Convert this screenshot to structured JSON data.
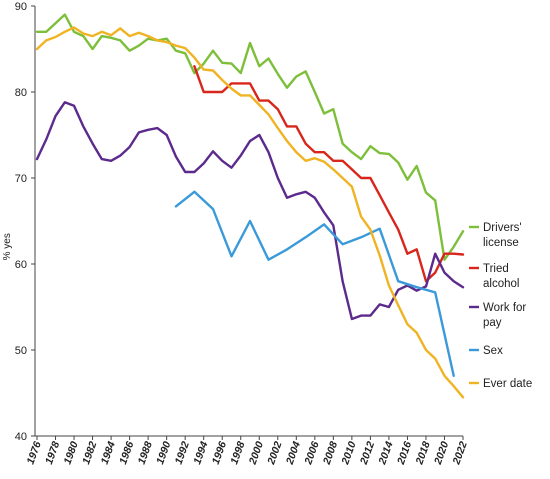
{
  "chart_data": {
    "type": "line",
    "title": "",
    "xlabel": "",
    "ylabel": "% yes",
    "ylim": [
      40,
      90
    ],
    "yticks": [
      40,
      50,
      60,
      70,
      80,
      90
    ],
    "xlim": [
      1976,
      2022
    ],
    "xticks": [
      1976,
      1978,
      1980,
      1982,
      1984,
      1986,
      1988,
      1990,
      1992,
      1994,
      1996,
      1998,
      2000,
      2002,
      2004,
      2006,
      2008,
      2010,
      2012,
      2014,
      2016,
      2018,
      2020,
      2022
    ],
    "grid": false,
    "legend": "right",
    "series": [
      {
        "name": "Drivers' license",
        "color": "#7dbf3b",
        "x": [
          1976,
          1977,
          1978,
          1979,
          1980,
          1981,
          1982,
          1983,
          1984,
          1985,
          1986,
          1987,
          1988,
          1989,
          1990,
          1991,
          1992,
          1993,
          1994,
          1995,
          1996,
          1997,
          1998,
          1999,
          2000,
          2001,
          2002,
          2003,
          2004,
          2005,
          2006,
          2007,
          2008,
          2009,
          2010,
          2011,
          2012,
          2013,
          2014,
          2015,
          2016,
          2017,
          2018,
          2019,
          2020,
          2021,
          2022
        ],
        "values": [
          87.0,
          87.0,
          88.0,
          89.0,
          87.0,
          86.5,
          85.0,
          86.5,
          86.3,
          86.0,
          84.8,
          85.4,
          86.2,
          86.0,
          86.2,
          84.8,
          84.5,
          82.2,
          83.3,
          84.8,
          83.4,
          83.3,
          82.2,
          85.7,
          83.0,
          83.9,
          82.1,
          80.5,
          81.8,
          82.4,
          80.0,
          77.5,
          78.0,
          74.0,
          73.0,
          72.2,
          73.7,
          72.9,
          72.8,
          71.8,
          69.8,
          71.4,
          68.3,
          67.4,
          60.5,
          62.0,
          63.8
        ]
      },
      {
        "name": "Tried alcohol",
        "color": "#d8261c",
        "x": [
          1993,
          1994,
          1995,
          1996,
          1997,
          1998,
          1999,
          2000,
          2001,
          2002,
          2003,
          2004,
          2005,
          2006,
          2007,
          2008,
          2009,
          2010,
          2011,
          2012,
          2013,
          2014,
          2015,
          2016,
          2017,
          2018,
          2019,
          2020,
          2021,
          2022
        ],
        "values": [
          83.0,
          80.0,
          80.0,
          80.0,
          81.0,
          81.0,
          81.0,
          79.0,
          79.0,
          78.0,
          76.0,
          76.0,
          74.0,
          73.0,
          73.0,
          72.0,
          72.0,
          71.0,
          70.0,
          70.0,
          68.0,
          66.0,
          64.0,
          61.2,
          61.7,
          58.0,
          59.0,
          61.2,
          61.2,
          61.1
        ]
      },
      {
        "name": "Work for pay",
        "color": "#5b2a8c",
        "x": [
          1976,
          1977,
          1978,
          1979,
          1980,
          1981,
          1982,
          1983,
          1984,
          1985,
          1986,
          1987,
          1988,
          1989,
          1990,
          1991,
          1992,
          1993,
          1994,
          1995,
          1996,
          1997,
          1998,
          1999,
          2000,
          2001,
          2002,
          2003,
          2004,
          2005,
          2006,
          2007,
          2008,
          2009,
          2010,
          2011,
          2012,
          2013,
          2014,
          2015,
          2016,
          2017,
          2018,
          2019,
          2020,
          2021,
          2022
        ],
        "values": [
          72.2,
          74.5,
          77.2,
          78.8,
          78.4,
          76.0,
          74.0,
          72.2,
          72.0,
          72.6,
          73.6,
          75.3,
          75.6,
          75.8,
          75.0,
          72.5,
          70.7,
          70.7,
          71.7,
          73.1,
          72.0,
          71.2,
          72.6,
          74.3,
          75.0,
          73.0,
          70.0,
          67.7,
          68.1,
          68.4,
          67.7,
          66.0,
          64.5,
          58.0,
          53.6,
          54.0,
          54.0,
          55.3,
          55.0,
          57.0,
          57.5,
          56.9,
          57.4,
          61.2,
          59.0,
          58.0,
          57.3
        ]
      },
      {
        "name": "Sex",
        "color": "#3a9ad9",
        "x": [
          1991,
          1993,
          1995,
          1997,
          1999,
          2001,
          2003,
          2005,
          2007,
          2009,
          2011,
          2013,
          2015,
          2017,
          2019,
          2021
        ],
        "values": [
          66.7,
          68.4,
          66.4,
          60.9,
          65.0,
          60.5,
          61.7,
          63.1,
          64.6,
          62.3,
          63.1,
          64.1,
          58.0,
          57.3,
          56.7,
          47.0
        ]
      },
      {
        "name": "Ever date",
        "color": "#f0b323",
        "x": [
          1976,
          1977,
          1978,
          1979,
          1980,
          1981,
          1982,
          1983,
          1984,
          1985,
          1986,
          1987,
          1988,
          1989,
          1990,
          1991,
          1992,
          1993,
          1994,
          1995,
          1996,
          1997,
          1998,
          1999,
          2000,
          2001,
          2002,
          2003,
          2004,
          2005,
          2006,
          2007,
          2008,
          2009,
          2010,
          2011,
          2012,
          2013,
          2014,
          2015,
          2016,
          2017,
          2018,
          2019,
          2020,
          2021,
          2022
        ],
        "values": [
          85.0,
          86.0,
          86.4,
          87.0,
          87.5,
          86.8,
          86.5,
          87.0,
          86.6,
          87.4,
          86.5,
          86.9,
          86.5,
          86.0,
          85.8,
          85.4,
          85.1,
          84.0,
          82.6,
          82.5,
          81.4,
          80.4,
          79.6,
          79.6,
          78.5,
          77.4,
          75.8,
          74.3,
          73.0,
          72.0,
          72.3,
          71.9,
          71.0,
          70.0,
          69.0,
          65.5,
          64.0,
          61.0,
          57.5,
          55.2,
          53.0,
          52.0,
          50.0,
          49.0,
          47.0,
          45.8,
          44.5
        ]
      }
    ]
  },
  "legend": {
    "items": [
      {
        "lines": [
          "Drivers'",
          "license"
        ],
        "color": "#7dbf3b"
      },
      {
        "lines": [
          "Tried",
          "alcohol"
        ],
        "color": "#d8261c"
      },
      {
        "lines": [
          "Work for",
          "pay"
        ],
        "color": "#5b2a8c"
      },
      {
        "lines": [
          "Sex"
        ],
        "color": "#3a9ad9"
      },
      {
        "lines": [
          "Ever date"
        ],
        "color": "#f0b323"
      }
    ]
  }
}
